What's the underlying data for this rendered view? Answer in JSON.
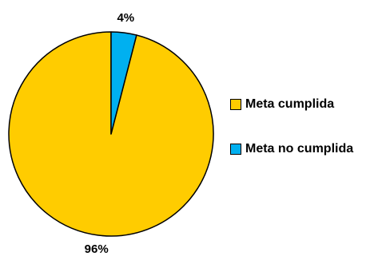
{
  "chart_data": {
    "type": "pie",
    "title": "",
    "categories": [
      "Meta cumplida",
      "Meta no cumplida"
    ],
    "values": [
      96,
      4
    ],
    "value_labels": [
      "96%",
      "4%"
    ],
    "colors": [
      "#FFCC00",
      "#00B0F0"
    ],
    "outline_color": "#000000",
    "legend_position": "right",
    "grid": false
  }
}
